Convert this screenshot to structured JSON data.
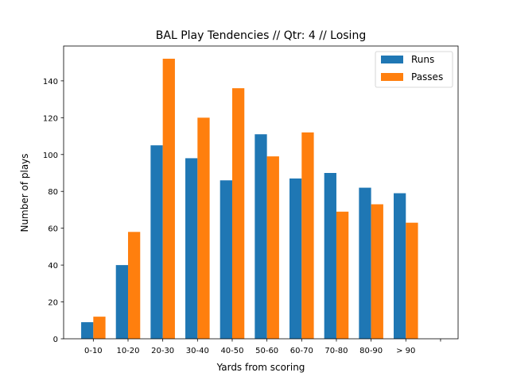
{
  "chart_data": {
    "type": "bar",
    "title": "BAL Play Tendencies // Qtr: 4 // Losing",
    "xlabel": "Yards from scoring",
    "ylabel": "Number of plays",
    "categories": [
      "0-10",
      "10-20",
      "20-30",
      "30-40",
      "40-50",
      "50-60",
      "60-70",
      "70-80",
      "80-90",
      "> 90"
    ],
    "series": [
      {
        "name": "Runs",
        "color": "#1f77b4",
        "values": [
          9,
          40,
          105,
          98,
          86,
          111,
          87,
          90,
          82,
          79
        ]
      },
      {
        "name": "Passes",
        "color": "#ff7f0e",
        "values": [
          12,
          58,
          152,
          120,
          136,
          99,
          112,
          69,
          73,
          63
        ]
      }
    ],
    "ylim": [
      0,
      158.9
    ],
    "yticks": [
      0,
      20,
      40,
      60,
      80,
      100,
      120,
      140
    ],
    "grid": false,
    "legend_position": "top-right"
  }
}
